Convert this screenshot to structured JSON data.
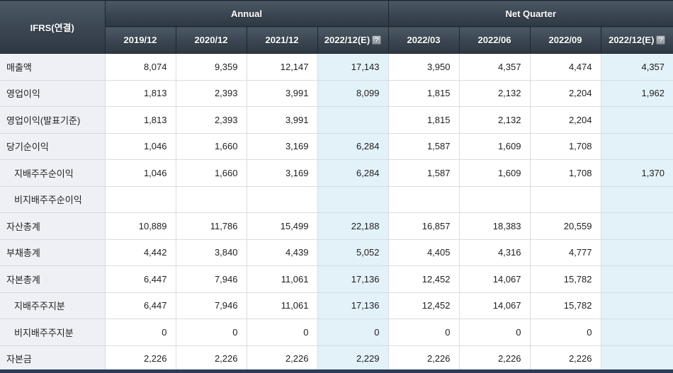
{
  "table": {
    "corner_label": "IFRS(연결)",
    "help_icon": "?",
    "groups": [
      {
        "label": "Annual",
        "span": 4
      },
      {
        "label": "Net Quarter",
        "span": 4
      }
    ],
    "columns": [
      {
        "label": "2019/12",
        "estimate": false
      },
      {
        "label": "2020/12",
        "estimate": false
      },
      {
        "label": "2021/12",
        "estimate": false
      },
      {
        "label": "2022/12(E)",
        "estimate": true
      },
      {
        "label": "2022/03",
        "estimate": false
      },
      {
        "label": "2022/06",
        "estimate": false
      },
      {
        "label": "2022/09",
        "estimate": false
      },
      {
        "label": "2022/12(E)",
        "estimate": true
      }
    ],
    "rows": [
      {
        "label": "매출액",
        "indent": false,
        "values": [
          "8,074",
          "9,359",
          "12,147",
          "17,143",
          "3,950",
          "4,357",
          "4,474",
          "4,357"
        ]
      },
      {
        "label": "영업이익",
        "indent": false,
        "values": [
          "1,813",
          "2,393",
          "3,991",
          "8,099",
          "1,815",
          "2,132",
          "2,204",
          "1,962"
        ]
      },
      {
        "label": "영업이익(발표기준)",
        "indent": false,
        "values": [
          "1,813",
          "2,393",
          "3,991",
          "",
          "1,815",
          "2,132",
          "2,204",
          ""
        ]
      },
      {
        "label": "당기순이익",
        "indent": false,
        "values": [
          "1,046",
          "1,660",
          "3,169",
          "6,284",
          "1,587",
          "1,609",
          "1,708",
          ""
        ]
      },
      {
        "label": "지배주주순이익",
        "indent": true,
        "values": [
          "1,046",
          "1,660",
          "3,169",
          "6,284",
          "1,587",
          "1,609",
          "1,708",
          "1,370"
        ]
      },
      {
        "label": "비지배주주순이익",
        "indent": true,
        "values": [
          "",
          "",
          "",
          "",
          "",
          "",
          "",
          ""
        ]
      },
      {
        "label": "자산총계",
        "indent": false,
        "values": [
          "10,889",
          "11,786",
          "15,499",
          "22,188",
          "16,857",
          "18,383",
          "20,559",
          ""
        ]
      },
      {
        "label": "부채총계",
        "indent": false,
        "values": [
          "4,442",
          "3,840",
          "4,439",
          "5,052",
          "4,405",
          "4,316",
          "4,777",
          ""
        ]
      },
      {
        "label": "자본총계",
        "indent": false,
        "values": [
          "6,447",
          "7,946",
          "11,061",
          "17,136",
          "12,452",
          "14,067",
          "15,782",
          ""
        ]
      },
      {
        "label": "지배주주지분",
        "indent": true,
        "values": [
          "6,447",
          "7,946",
          "11,061",
          "17,136",
          "12,452",
          "14,067",
          "15,782",
          ""
        ]
      },
      {
        "label": "비지배주주지분",
        "indent": true,
        "values": [
          "0",
          "0",
          "0",
          "0",
          "0",
          "0",
          "0",
          ""
        ]
      },
      {
        "label": "자본금",
        "indent": false,
        "values": [
          "2,226",
          "2,226",
          "2,226",
          "2,229",
          "2,226",
          "2,226",
          "2,226",
          ""
        ]
      }
    ],
    "colors": {
      "header_bg_top": "#4c5864",
      "header_bg_bottom": "#2e3843",
      "header_border": "#1f262d",
      "header_text": "#ffffff",
      "label_column_bg": "#eef0f6",
      "estimate_column_bg": "#e3f1f8",
      "grid_border": "#d8dce2",
      "cell_text": "#1f1f1f",
      "bottom_bar": "#2b3c59"
    }
  }
}
